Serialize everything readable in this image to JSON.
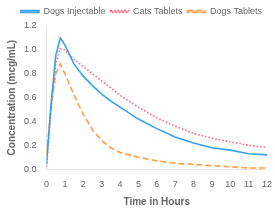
{
  "chart_data": {
    "type": "line",
    "xlabel": "Time in Hours",
    "ylabel": "Concentration (mcg/mL)",
    "x": [
      0,
      0.25,
      0.5,
      0.75,
      1.0,
      1.5,
      2.0,
      2.5,
      3.0,
      3.5,
      4.0,
      5.0,
      6.0,
      7.0,
      8.0,
      9.0,
      10.0,
      11.0,
      12.0
    ],
    "series": [
      {
        "name": "Dogs Injectable",
        "line_style": "solid",
        "values": [
          0.04,
          0.55,
          0.95,
          1.1,
          1.04,
          0.88,
          0.78,
          0.7,
          0.63,
          0.57,
          0.52,
          0.42,
          0.34,
          0.27,
          0.22,
          0.18,
          0.16,
          0.13,
          0.12
        ]
      },
      {
        "name": "Cats Tablets",
        "line_style": "dotted",
        "values": [
          0.02,
          0.5,
          0.88,
          1.01,
          1.0,
          0.92,
          0.86,
          0.8,
          0.74,
          0.68,
          0.62,
          0.52,
          0.43,
          0.36,
          0.3,
          0.26,
          0.23,
          0.2,
          0.18
        ]
      },
      {
        "name": "Dogs Tablets",
        "line_style": "dashed",
        "values": [
          0.12,
          0.52,
          0.8,
          0.88,
          0.8,
          0.62,
          0.46,
          0.33,
          0.24,
          0.18,
          0.14,
          0.1,
          0.07,
          0.05,
          0.04,
          0.03,
          0.02,
          0.01,
          0.01
        ]
      }
    ],
    "xlim": [
      0,
      12
    ],
    "xticks": [
      0,
      1,
      2,
      3,
      4,
      5,
      6,
      7,
      8,
      9,
      10,
      11,
      12
    ],
    "ylim": [
      0,
      1.2
    ],
    "yticks": [
      {
        "value": 0,
        "label": "0.0"
      },
      0.2,
      0.4,
      0.6,
      0.8,
      {
        "value": 1.0,
        "label": "1.0"
      },
      1.2
    ],
    "grid": false,
    "legend": "upper right"
  }
}
